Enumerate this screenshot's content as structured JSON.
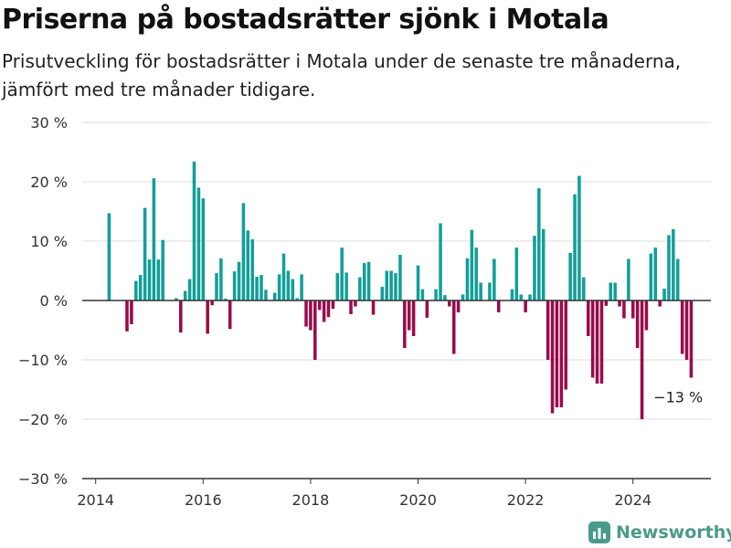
{
  "header": {
    "title": "Priserna på bostadsrätter sjönk i Motala",
    "subtitle": "Prisutveckling för bostadsrätter i Motala under de senaste tre månaderna, jämfört med tre månader tidigare."
  },
  "chart_data": {
    "type": "bar",
    "ylim": [
      -30,
      30
    ],
    "xlim": [
      2013.75,
      2025.45
    ],
    "yticks": [
      {
        "value": 30,
        "label": "30 %"
      },
      {
        "value": 20,
        "label": "20 %"
      },
      {
        "value": 10,
        "label": "10 %"
      },
      {
        "value": 0,
        "label": "0 %"
      },
      {
        "value": -10,
        "label": "−10 %"
      },
      {
        "value": -20,
        "label": "−20 %"
      },
      {
        "value": -30,
        "label": "−30 %"
      }
    ],
    "xticks": [
      {
        "value": 2014,
        "label": "2014"
      },
      {
        "value": 2016,
        "label": "2016"
      },
      {
        "value": 2018,
        "label": "2018"
      },
      {
        "value": 2020,
        "label": "2020"
      },
      {
        "value": 2022,
        "label": "2022"
      },
      {
        "value": 2024,
        "label": "2024"
      }
    ],
    "grid": true,
    "colors": {
      "positive": "#119f98",
      "negative": "#9b0a4b",
      "grid": "#dddddd",
      "axis": "#333333",
      "text": "#333333"
    },
    "annotation": {
      "x": 2024.875,
      "y": -13,
      "label": "−13 %"
    },
    "points": [
      {
        "x": 2014.25,
        "y": 14.7
      },
      {
        "x": 2014.5,
        "y": 0.1
      },
      {
        "x": 2014.583,
        "y": -5.2
      },
      {
        "x": 2014.667,
        "y": -4.0
      },
      {
        "x": 2014.75,
        "y": 3.3
      },
      {
        "x": 2014.833,
        "y": 4.3
      },
      {
        "x": 2014.917,
        "y": 15.6
      },
      {
        "x": 2015.0,
        "y": 6.9
      },
      {
        "x": 2015.083,
        "y": 20.6
      },
      {
        "x": 2015.167,
        "y": 6.9
      },
      {
        "x": 2015.25,
        "y": 10.2
      },
      {
        "x": 2015.5,
        "y": 0.4
      },
      {
        "x": 2015.583,
        "y": -5.4
      },
      {
        "x": 2015.667,
        "y": 1.6
      },
      {
        "x": 2015.75,
        "y": 3.6
      },
      {
        "x": 2015.833,
        "y": 23.4
      },
      {
        "x": 2015.917,
        "y": 19.0
      },
      {
        "x": 2016.0,
        "y": 17.2
      },
      {
        "x": 2016.083,
        "y": -5.6
      },
      {
        "x": 2016.167,
        "y": -0.8
      },
      {
        "x": 2016.25,
        "y": 4.6
      },
      {
        "x": 2016.333,
        "y": 7.1
      },
      {
        "x": 2016.417,
        "y": 0.3
      },
      {
        "x": 2016.5,
        "y": -4.8
      },
      {
        "x": 2016.583,
        "y": 4.9
      },
      {
        "x": 2016.667,
        "y": 6.5
      },
      {
        "x": 2016.75,
        "y": 16.4
      },
      {
        "x": 2016.833,
        "y": 11.8
      },
      {
        "x": 2016.917,
        "y": 10.3
      },
      {
        "x": 2017.0,
        "y": 4.0
      },
      {
        "x": 2017.083,
        "y": 4.3
      },
      {
        "x": 2017.167,
        "y": 1.8
      },
      {
        "x": 2017.333,
        "y": 1.3
      },
      {
        "x": 2017.417,
        "y": 4.4
      },
      {
        "x": 2017.5,
        "y": 7.9
      },
      {
        "x": 2017.583,
        "y": 5.0
      },
      {
        "x": 2017.667,
        "y": 3.6
      },
      {
        "x": 2017.75,
        "y": 0.4
      },
      {
        "x": 2017.833,
        "y": 4.4
      },
      {
        "x": 2017.917,
        "y": -4.4
      },
      {
        "x": 2018.0,
        "y": -5.0
      },
      {
        "x": 2018.083,
        "y": -10.0
      },
      {
        "x": 2018.167,
        "y": -1.6
      },
      {
        "x": 2018.25,
        "y": -3.6
      },
      {
        "x": 2018.333,
        "y": -2.8
      },
      {
        "x": 2018.417,
        "y": -1.4
      },
      {
        "x": 2018.5,
        "y": 4.6
      },
      {
        "x": 2018.583,
        "y": 8.9
      },
      {
        "x": 2018.667,
        "y": 4.7
      },
      {
        "x": 2018.75,
        "y": -2.3
      },
      {
        "x": 2018.833,
        "y": -1.0
      },
      {
        "x": 2018.917,
        "y": 3.9
      },
      {
        "x": 2019.0,
        "y": 6.3
      },
      {
        "x": 2019.083,
        "y": 6.5
      },
      {
        "x": 2019.167,
        "y": -2.4
      },
      {
        "x": 2019.25,
        "y": 0.1
      },
      {
        "x": 2019.333,
        "y": 2.3
      },
      {
        "x": 2019.417,
        "y": 5.0
      },
      {
        "x": 2019.5,
        "y": 5.0
      },
      {
        "x": 2019.583,
        "y": 4.6
      },
      {
        "x": 2019.667,
        "y": 7.7
      },
      {
        "x": 2019.75,
        "y": -8.0
      },
      {
        "x": 2019.833,
        "y": -5.0
      },
      {
        "x": 2019.917,
        "y": -6.0
      },
      {
        "x": 2020.0,
        "y": 5.9
      },
      {
        "x": 2020.083,
        "y": 1.9
      },
      {
        "x": 2020.167,
        "y": -2.9
      },
      {
        "x": 2020.25,
        "y": 0.1
      },
      {
        "x": 2020.333,
        "y": 1.9
      },
      {
        "x": 2020.417,
        "y": 13.0
      },
      {
        "x": 2020.5,
        "y": 0.9
      },
      {
        "x": 2020.583,
        "y": -1.0
      },
      {
        "x": 2020.667,
        "y": -9.0
      },
      {
        "x": 2020.75,
        "y": -2.0
      },
      {
        "x": 2020.833,
        "y": 1.0
      },
      {
        "x": 2020.917,
        "y": 7.1
      },
      {
        "x": 2021.0,
        "y": 11.9
      },
      {
        "x": 2021.083,
        "y": 8.9
      },
      {
        "x": 2021.167,
        "y": 3.0
      },
      {
        "x": 2021.333,
        "y": 3.0
      },
      {
        "x": 2021.417,
        "y": 7.0
      },
      {
        "x": 2021.5,
        "y": -2.0
      },
      {
        "x": 2021.75,
        "y": 1.9
      },
      {
        "x": 2021.833,
        "y": 8.9
      },
      {
        "x": 2021.917,
        "y": 1.0
      },
      {
        "x": 2022.0,
        "y": -2.0
      },
      {
        "x": 2022.083,
        "y": 1.0
      },
      {
        "x": 2022.167,
        "y": 10.9
      },
      {
        "x": 2022.25,
        "y": 18.9
      },
      {
        "x": 2022.333,
        "y": 12.0
      },
      {
        "x": 2022.417,
        "y": -10.0
      },
      {
        "x": 2022.5,
        "y": -19.0
      },
      {
        "x": 2022.583,
        "y": -18.0
      },
      {
        "x": 2022.667,
        "y": -18.0
      },
      {
        "x": 2022.75,
        "y": -15.0
      },
      {
        "x": 2022.833,
        "y": 8.0
      },
      {
        "x": 2022.917,
        "y": 17.9
      },
      {
        "x": 2023.0,
        "y": 21.0
      },
      {
        "x": 2023.083,
        "y": 3.9
      },
      {
        "x": 2023.167,
        "y": -6.0
      },
      {
        "x": 2023.25,
        "y": -13.0
      },
      {
        "x": 2023.333,
        "y": -14.0
      },
      {
        "x": 2023.417,
        "y": -14.0
      },
      {
        "x": 2023.5,
        "y": -0.9
      },
      {
        "x": 2023.583,
        "y": 3.0
      },
      {
        "x": 2023.667,
        "y": 3.0
      },
      {
        "x": 2023.75,
        "y": -1.0
      },
      {
        "x": 2023.833,
        "y": -3.0
      },
      {
        "x": 2023.917,
        "y": 7.0
      },
      {
        "x": 2024.0,
        "y": -3.0
      },
      {
        "x": 2024.083,
        "y": -8.0
      },
      {
        "x": 2024.167,
        "y": -20.0
      },
      {
        "x": 2024.25,
        "y": -5.0
      },
      {
        "x": 2024.333,
        "y": 7.9
      },
      {
        "x": 2024.417,
        "y": 8.9
      },
      {
        "x": 2024.5,
        "y": -1.0
      },
      {
        "x": 2024.583,
        "y": 2.0
      },
      {
        "x": 2024.667,
        "y": 11.0
      },
      {
        "x": 2024.75,
        "y": 12.0
      },
      {
        "x": 2024.833,
        "y": 7.0
      },
      {
        "x": 2024.917,
        "y": -9.0
      },
      {
        "x": 2025.0,
        "y": -10.0
      },
      {
        "x": 2025.083,
        "y": -13.0
      }
    ]
  },
  "footer": {
    "brand": "Newsworthy",
    "brand_icon": "newsworthy-logo-icon",
    "brand_color": "#4a9a8a"
  }
}
